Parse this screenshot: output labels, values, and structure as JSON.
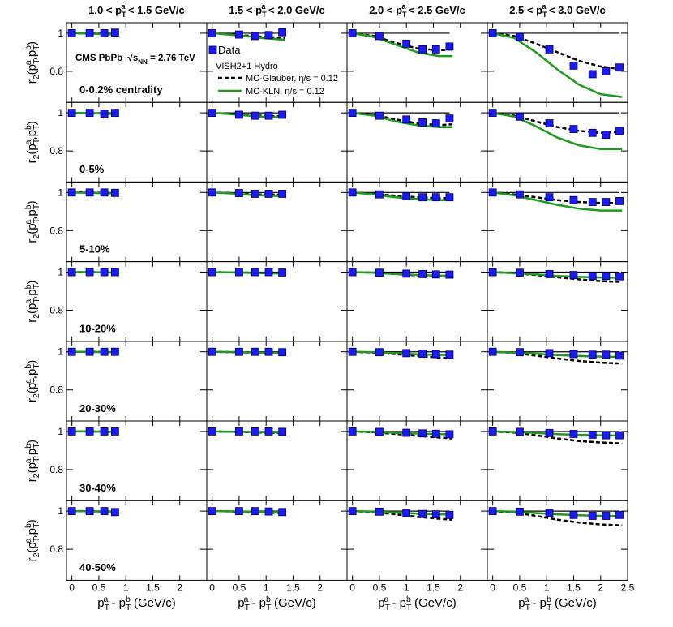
{
  "chart_data": {
    "type": "scatter",
    "experiment": [
      {
        "t": "CMS PbPb  "
      },
      {
        "t": "√"
      },
      {
        "t": "s"
      },
      {
        "t": "NN",
        "s": "sub"
      },
      {
        "t": " = 2.76 TeV"
      }
    ],
    "model_label": "VISH2+1 Hydro",
    "series": [
      {
        "name": "Data",
        "color": "#1c1cf0"
      },
      {
        "name": "MC-Glauber, η/s = 0.12",
        "color": "#000000",
        "dash": true
      },
      {
        "name": "MC-KLN, η/s = 0.12",
        "color": "#1e9b1e"
      }
    ],
    "ylabel": [
      {
        "t": "r"
      },
      {
        "t": "2",
        "s": "sub"
      },
      {
        "t": "(p"
      },
      {
        "t": "T",
        "s": "sub"
      },
      {
        "t": "a",
        "s": "sup"
      },
      {
        "t": ",p"
      },
      {
        "t": "T",
        "s": "sub"
      },
      {
        "t": "b",
        "s": "sup"
      },
      {
        "t": ")"
      }
    ],
    "xlabel": [
      {
        "t": "p"
      },
      {
        "t": "T",
        "s": "sub"
      },
      {
        "t": "a",
        "s": "sup"
      },
      {
        "t": " - p"
      },
      {
        "t": "T",
        "s": "sub"
      },
      {
        "t": "b",
        "s": "sup"
      },
      {
        "t": " (GeV/c)"
      }
    ],
    "xlim": [
      -0.1,
      2.5
    ],
    "ylim": [
      0.637,
      1.055
    ],
    "yticks": [
      0.8,
      1
    ],
    "reference": 1,
    "columns": [
      {
        "title": [
          {
            "t": "1.0 < p"
          },
          {
            "t": "T",
            "s": "sub"
          },
          {
            "t": "a",
            "s": "sup"
          },
          {
            "t": " < 1.5 GeV/c"
          }
        ],
        "x": [
          0,
          0.33,
          0.6,
          0.8
        ],
        "model_x": [
          0,
          0.2,
          0.4,
          0.6,
          0.85
        ],
        "xticks": [
          0,
          0.5,
          1,
          1.5,
          2
        ]
      },
      {
        "title": [
          {
            "t": "1.5 < p"
          },
          {
            "t": "T",
            "s": "sub"
          },
          {
            "t": "a",
            "s": "sup"
          },
          {
            "t": " < 2.0 GeV/c"
          }
        ],
        "x": [
          0,
          0.5,
          0.8,
          1.05,
          1.3
        ],
        "model_x": [
          0,
          0.3,
          0.6,
          0.9,
          1.35
        ],
        "xticks": [
          0,
          0.5,
          1,
          1.5,
          2
        ]
      },
      {
        "title": [
          {
            "t": "2.0 < p"
          },
          {
            "t": "T",
            "s": "sub"
          },
          {
            "t": "a",
            "s": "sup"
          },
          {
            "t": " < 2.5 GeV/c"
          }
        ],
        "x": [
          0,
          0.5,
          1.0,
          1.3,
          1.55,
          1.8
        ],
        "model_x": [
          0,
          0.4,
          0.8,
          1.2,
          1.6,
          1.85
        ],
        "xticks": [
          0,
          0.5,
          1,
          1.5,
          2
        ]
      },
      {
        "title": [
          {
            "t": "2.5 < p"
          },
          {
            "t": "T",
            "s": "sub"
          },
          {
            "t": "a",
            "s": "sup"
          },
          {
            "t": " < 3.0 GeV/c"
          }
        ],
        "x": [
          0,
          0.5,
          1.05,
          1.5,
          1.85,
          2.1,
          2.35
        ],
        "model_x": [
          0,
          0.4,
          0.8,
          1.2,
          1.6,
          2.0,
          2.4
        ],
        "xticks": [
          0,
          0.5,
          1,
          1.5,
          2,
          2.5
        ]
      }
    ],
    "rows": [
      {
        "label": "0-0.2% centrality",
        "data": [
          [
            1.0,
            1.0,
            1.0,
            1.003
          ],
          [
            1.0,
            0.993,
            0.985,
            0.99,
            1.005
          ],
          [
            1.0,
            0.985,
            0.945,
            0.915,
            0.915,
            0.93
          ],
          [
            1.0,
            0.98,
            0.915,
            0.83,
            0.785,
            0.8,
            0.82
          ]
        ],
        "glauber": [
          [
            1,
            0.999,
            0.998,
            0.997,
            0.995
          ],
          [
            1,
            0.995,
            0.988,
            0.982,
            0.975
          ],
          [
            1,
            0.985,
            0.95,
            0.92,
            0.91,
            0.915
          ],
          [
            1,
            0.985,
            0.945,
            0.9,
            0.855,
            0.825,
            0.81
          ]
        ],
        "kln": [
          [
            1,
            0.999,
            0.997,
            0.995,
            0.993
          ],
          [
            1,
            0.993,
            0.985,
            0.975,
            0.965
          ],
          [
            1,
            0.98,
            0.94,
            0.9,
            0.88,
            0.88
          ],
          [
            1,
            0.975,
            0.9,
            0.81,
            0.73,
            0.68,
            0.665
          ]
        ]
      },
      {
        "label": "0-5%",
        "data": [
          [
            1,
            1,
            0.995,
            1.0
          ],
          [
            1,
            0.99,
            0.985,
            0.985,
            0.99
          ],
          [
            1,
            0.985,
            0.965,
            0.95,
            0.945,
            0.97
          ],
          [
            1,
            0.98,
            0.945,
            0.915,
            0.895,
            0.885,
            0.905
          ]
        ],
        "glauber": [
          [
            1,
            0.999,
            0.998,
            0.997,
            0.995
          ],
          [
            1,
            0.995,
            0.99,
            0.985,
            0.98
          ],
          [
            1,
            0.99,
            0.965,
            0.945,
            0.935,
            0.94
          ],
          [
            1,
            0.985,
            0.955,
            0.925,
            0.905,
            0.895,
            0.9
          ]
        ],
        "kln": [
          [
            1,
            0.999,
            0.997,
            0.995,
            0.993
          ],
          [
            1,
            0.994,
            0.987,
            0.98,
            0.975
          ],
          [
            1,
            0.985,
            0.955,
            0.935,
            0.925,
            0.925
          ],
          [
            1,
            0.98,
            0.93,
            0.87,
            0.83,
            0.81,
            0.81
          ]
        ]
      },
      {
        "label": "5-10%",
        "data": [
          [
            1,
            1,
            1,
            0.998
          ],
          [
            1,
            0.997,
            0.993,
            0.993,
            0.993
          ],
          [
            1,
            0.99,
            0.98,
            0.975,
            0.975,
            0.975
          ],
          [
            1,
            0.99,
            0.975,
            0.96,
            0.95,
            0.95,
            0.955
          ]
        ],
        "glauber": [
          [
            1,
            1,
            0.999,
            0.998,
            0.997
          ],
          [
            1,
            0.997,
            0.993,
            0.99,
            0.988
          ],
          [
            1,
            0.993,
            0.983,
            0.975,
            0.97,
            0.97
          ],
          [
            1,
            0.99,
            0.975,
            0.96,
            0.95,
            0.945,
            0.945
          ]
        ],
        "kln": [
          [
            1,
            0.999,
            0.998,
            0.996,
            0.995
          ],
          [
            1,
            0.996,
            0.99,
            0.985,
            0.98
          ],
          [
            1,
            0.99,
            0.975,
            0.965,
            0.96,
            0.96
          ],
          [
            1,
            0.985,
            0.96,
            0.935,
            0.915,
            0.905,
            0.905
          ]
        ]
      },
      {
        "label": "10-20%",
        "data": [
          [
            1,
            1,
            1,
            1
          ],
          [
            1,
            1,
            1,
            1,
            0.998
          ],
          [
            1,
            0.997,
            0.992,
            0.99,
            0.988,
            0.987
          ],
          [
            1,
            0.997,
            0.99,
            0.985,
            0.98,
            0.98,
            0.978
          ]
        ],
        "glauber": [
          [
            1,
            1,
            1,
            0.999,
            0.999
          ],
          [
            1,
            0.999,
            0.998,
            0.996,
            0.995
          ],
          [
            1,
            0.997,
            0.99,
            0.983,
            0.978,
            0.975
          ],
          [
            1,
            0.995,
            0.985,
            0.973,
            0.962,
            0.953,
            0.948
          ]
        ],
        "kln": [
          [
            1,
            1,
            0.999,
            0.999,
            0.998
          ],
          [
            1,
            0.999,
            0.997,
            0.995,
            0.993
          ],
          [
            1,
            0.997,
            0.99,
            0.985,
            0.982,
            0.98
          ],
          [
            1,
            0.995,
            0.988,
            0.98,
            0.975,
            0.972,
            0.97
          ]
        ]
      },
      {
        "label": "20-30%",
        "data": [
          [
            1,
            1,
            1,
            1
          ],
          [
            1,
            1,
            1,
            1,
            0.998
          ],
          [
            1,
            0.998,
            0.993,
            0.99,
            0.988,
            0.985
          ],
          [
            1,
            0.998,
            0.993,
            0.988,
            0.985,
            0.985,
            0.98
          ]
        ],
        "glauber": [
          [
            1,
            1,
            1,
            0.999,
            0.999
          ],
          [
            1,
            0.999,
            0.997,
            0.995,
            0.993
          ],
          [
            1,
            0.996,
            0.988,
            0.978,
            0.97,
            0.966
          ],
          [
            1,
            0.994,
            0.98,
            0.965,
            0.952,
            0.943,
            0.938
          ]
        ],
        "kln": [
          [
            1,
            1,
            0.999,
            0.999,
            0.998
          ],
          [
            1,
            0.999,
            0.997,
            0.995,
            0.994
          ],
          [
            1,
            0.998,
            0.992,
            0.987,
            0.984,
            0.983
          ],
          [
            1,
            0.996,
            0.99,
            0.983,
            0.978,
            0.975,
            0.973
          ]
        ]
      },
      {
        "label": "30-40%",
        "data": [
          [
            1,
            1,
            1,
            1
          ],
          [
            1,
            1,
            1,
            1,
            0.998
          ],
          [
            1,
            0.998,
            0.993,
            0.99,
            0.988,
            0.985
          ],
          [
            1,
            0.998,
            0.992,
            0.987,
            0.983,
            0.98,
            0.98
          ]
        ],
        "glauber": [
          [
            1,
            1,
            1,
            0.999,
            0.998
          ],
          [
            1,
            0.999,
            0.997,
            0.994,
            0.992
          ],
          [
            1,
            0.996,
            0.987,
            0.977,
            0.968,
            0.963
          ],
          [
            1,
            0.994,
            0.98,
            0.963,
            0.95,
            0.942,
            0.937
          ]
        ],
        "kln": [
          [
            1,
            1,
            0.999,
            0.999,
            0.998
          ],
          [
            1,
            0.999,
            0.998,
            0.996,
            0.995
          ],
          [
            1,
            0.998,
            0.993,
            0.989,
            0.986,
            0.985
          ],
          [
            1,
            0.997,
            0.992,
            0.986,
            0.982,
            0.98,
            0.978
          ]
        ]
      },
      {
        "label": "40-50%",
        "data": [
          [
            1,
            1,
            1,
            0.995
          ],
          [
            1,
            1,
            1,
            0.998,
            0.995
          ],
          [
            1,
            0.997,
            0.99,
            0.985,
            0.983,
            0.98
          ],
          [
            1,
            0.997,
            0.99,
            0.98,
            0.975,
            0.975,
            0.98
          ]
        ],
        "glauber": [
          [
            1,
            1,
            0.999,
            0.998,
            0.997
          ],
          [
            1,
            0.999,
            0.996,
            0.993,
            0.99
          ],
          [
            1,
            0.995,
            0.983,
            0.97,
            0.96,
            0.955
          ],
          [
            1,
            0.993,
            0.975,
            0.955,
            0.94,
            0.93,
            0.925
          ]
        ],
        "kln": [
          [
            1,
            1,
            0.999,
            0.998,
            0.998
          ],
          [
            1,
            0.999,
            0.997,
            0.995,
            0.994
          ],
          [
            1,
            0.998,
            0.992,
            0.987,
            0.983,
            0.982
          ],
          [
            1,
            0.997,
            0.99,
            0.983,
            0.978,
            0.975,
            0.973
          ]
        ]
      }
    ]
  }
}
